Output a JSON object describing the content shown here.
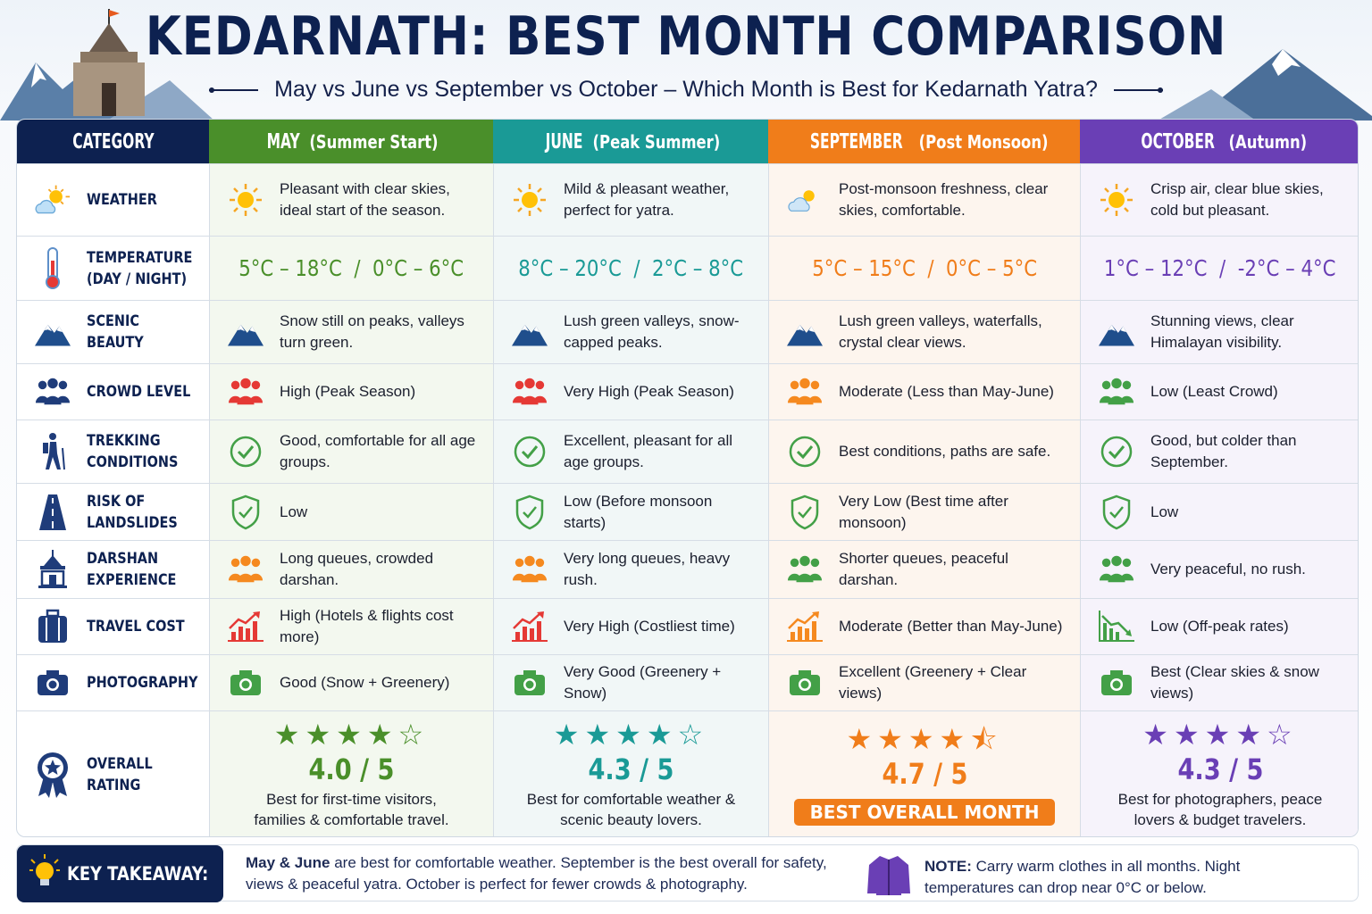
{
  "header": {
    "title": "KEDARNATH: BEST MONTH COMPARISON",
    "subtitle": "May vs June vs September vs October – Which Month is Best for Kedarnath Yatra?"
  },
  "colors": {
    "navy": "#0d2150",
    "may": "#4a8f2a",
    "june": "#1a9a96",
    "september": "#f07d1a",
    "october": "#6a3fb5"
  },
  "columns": [
    {
      "label": "CATEGORY",
      "sub": "",
      "color": "#0d2150",
      "bg": "#ffffff"
    },
    {
      "label": "MAY",
      "sub": "(Summer Start)",
      "color": "#4a8f2a",
      "bg": "#f3f8ef"
    },
    {
      "label": "JUNE",
      "sub": "(Peak Summer)",
      "color": "#1a9a96",
      "bg": "#f1f7f7"
    },
    {
      "label": "SEPTEMBER",
      "sub": "(Post Monsoon)",
      "color": "#f07d1a",
      "bg": "#fdf5ee"
    },
    {
      "label": "OCTOBER",
      "sub": "(Autumn)",
      "color": "#6a3fb5",
      "bg": "#f6f3fb"
    }
  ],
  "rows": [
    {
      "category": "WEATHER",
      "icon": "sun-cloud-icon",
      "cells": [
        {
          "icon": "sun-icon",
          "text": "Pleasant with clear skies, ideal start of the season."
        },
        {
          "icon": "sun-icon",
          "text": "Mild & pleasant weather, perfect for yatra."
        },
        {
          "icon": "cloud-sun-icon",
          "text": "Post-monsoon freshness, clear skies, comfortable."
        },
        {
          "icon": "sun-icon",
          "text": "Crisp air, clear blue skies, cold but pleasant."
        }
      ]
    },
    {
      "category": "TEMPERATURE (DAY / NIGHT)",
      "icon": "thermometer-icon",
      "type": "temp",
      "cells": [
        {
          "text": "5°C – 18°C  /  0°C – 6°C"
        },
        {
          "text": "8°C – 20°C  /  2°C – 8°C"
        },
        {
          "text": "5°C – 15°C  /  0°C – 5°C"
        },
        {
          "text": "1°C – 12°C  /  -2°C – 4°C"
        }
      ]
    },
    {
      "category": "SCENIC BEAUTY",
      "icon": "mountain-icon",
      "cells": [
        {
          "icon": "mountain-icon",
          "text": "Snow still on peaks, valleys turn green."
        },
        {
          "icon": "mountain-icon",
          "text": "Lush green valleys, snow-capped peaks."
        },
        {
          "icon": "mountain-icon",
          "text": "Lush green valleys, waterfalls, crystal clear views."
        },
        {
          "icon": "mountain-icon",
          "text": "Stunning views, clear Himalayan visibility."
        }
      ]
    },
    {
      "category": "CROWD LEVEL",
      "icon": "people-icon",
      "cells": [
        {
          "icon": "people-icon",
          "iconColor": "#e53935",
          "text": "High (Peak Season)"
        },
        {
          "icon": "people-icon",
          "iconColor": "#e53935",
          "text": "Very High (Peak Season)"
        },
        {
          "icon": "people-icon",
          "iconColor": "#f5891f",
          "text": "Moderate (Less than May-June)"
        },
        {
          "icon": "people-icon",
          "iconColor": "#43a047",
          "text": "Low (Least Crowd)"
        }
      ]
    },
    {
      "category": "TREKKING CONDITIONS",
      "icon": "hiker-icon",
      "cells": [
        {
          "icon": "check-circle-icon",
          "text": "Good, comfortable for all age groups."
        },
        {
          "icon": "check-circle-icon",
          "text": "Excellent, pleasant for all age groups."
        },
        {
          "icon": "check-circle-icon",
          "text": "Best conditions, paths are safe."
        },
        {
          "icon": "check-circle-icon",
          "text": "Good, but colder than September."
        }
      ]
    },
    {
      "category": "RISK OF LANDSLIDES",
      "icon": "road-icon",
      "cells": [
        {
          "icon": "shield-check-icon",
          "text": "Low"
        },
        {
          "icon": "shield-check-icon",
          "text": "Low (Before monsoon starts)"
        },
        {
          "icon": "shield-check-icon",
          "text": "Very Low (Best time after monsoon)"
        },
        {
          "icon": "shield-check-icon",
          "text": "Low"
        }
      ]
    },
    {
      "category": "DARSHAN EXPERIENCE",
      "icon": "temple-icon",
      "cells": [
        {
          "icon": "people-icon",
          "iconColor": "#f5891f",
          "text": "Long queues, crowded darshan."
        },
        {
          "icon": "people-icon",
          "iconColor": "#f5891f",
          "text": "Very long queues, heavy rush."
        },
        {
          "icon": "people-icon",
          "iconColor": "#43a047",
          "text": "Shorter queues, peaceful darshan."
        },
        {
          "icon": "people-icon",
          "iconColor": "#43a047",
          "text": "Very peaceful, no rush."
        }
      ]
    },
    {
      "category": "TRAVEL COST",
      "icon": "luggage-icon",
      "cells": [
        {
          "icon": "chart-up-icon",
          "iconColor": "#e53935",
          "text": "High (Hotels & flights cost more)"
        },
        {
          "icon": "chart-up-icon",
          "iconColor": "#e53935",
          "text": "Very High (Costliest time)"
        },
        {
          "icon": "chart-up-icon",
          "iconColor": "#f5891f",
          "text": "Moderate (Better than May-June)"
        },
        {
          "icon": "chart-down-icon",
          "iconColor": "#43a047",
          "text": "Low (Off-peak rates)"
        }
      ]
    },
    {
      "category": "PHOTOGRAPHY",
      "icon": "camera-icon",
      "cells": [
        {
          "icon": "camera-icon",
          "iconColor": "#43a047",
          "text": "Good (Snow + Greenery)"
        },
        {
          "icon": "camera-icon",
          "iconColor": "#43a047",
          "text": "Very Good (Greenery + Snow)"
        },
        {
          "icon": "camera-icon",
          "iconColor": "#43a047",
          "text": "Excellent (Greenery + Clear views)"
        },
        {
          "icon": "camera-icon",
          "iconColor": "#43a047",
          "text": "Best (Clear skies & snow views)"
        }
      ]
    }
  ],
  "overall": {
    "category": "OVERALL RATING",
    "icon": "medal-icon",
    "cells": [
      {
        "stars": 4,
        "score": "4.0 / 5",
        "text": "Best for first-time visitors, families & comfortable travel."
      },
      {
        "stars": 4,
        "score": "4.3 / 5",
        "text": "Best for comfortable weather & scenic beauty lovers."
      },
      {
        "stars": 4.5,
        "score": "4.7 / 5",
        "badge": "BEST OVERALL MONTH"
      },
      {
        "stars": 4,
        "score": "4.3 / 5",
        "text": "Best for photographers, peace lovers & budget travelers."
      }
    ]
  },
  "footer": {
    "takeaway_label": "KEY TAKEAWAY:",
    "takeaway_bold": "May & June",
    "takeaway_text": " are best for comfortable weather. September is the best overall for safety, views & peaceful yatra. October is perfect for fewer crowds & photography.",
    "note_label": "NOTE:",
    "note_text": " Carry warm clothes in all months. Night temperatures can drop near 0°C or below."
  }
}
